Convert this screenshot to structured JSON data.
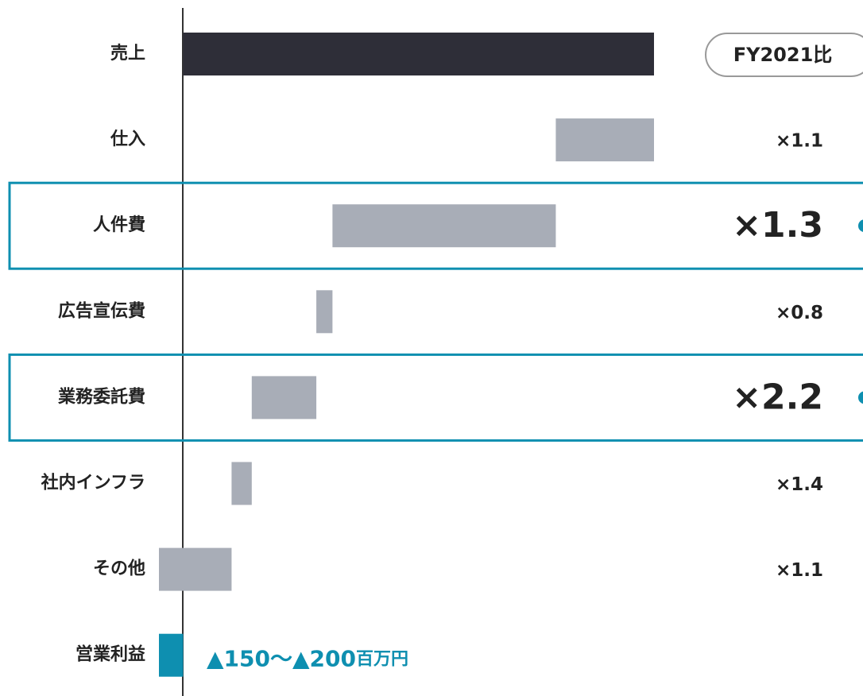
{
  "chart_data": {
    "type": "waterfall",
    "categories": [
      "売上",
      "仕入",
      "人件費",
      "広告宣伝費",
      "業務委託費",
      "社内インフラ",
      "その他",
      "営業利益"
    ],
    "values": [
      3500,
      -730,
      -1660,
      -120,
      -480,
      -150,
      -540,
      -180
    ],
    "colors": [
      "#2e2e38",
      "#a8adb7",
      "#a8adb7",
      "#a8adb7",
      "#a8adb7",
      "#a8adb7",
      "#a8adb7",
      "#0e8fb0"
    ],
    "total_last": true,
    "xlim": [
      -180,
      3500
    ],
    "ratio_header": "FY2021比",
    "ratios": [
      null,
      "×1.1",
      "×1.3",
      "×0.8",
      "×2.2",
      "×1.4",
      "×1.1",
      null
    ],
    "highlight": [
      false,
      false,
      true,
      false,
      true,
      false,
      false,
      false
    ],
    "highlight_color": "#0e8fb0",
    "annotation": "▲150〜▲200",
    "annotation_unit": "百万円"
  }
}
